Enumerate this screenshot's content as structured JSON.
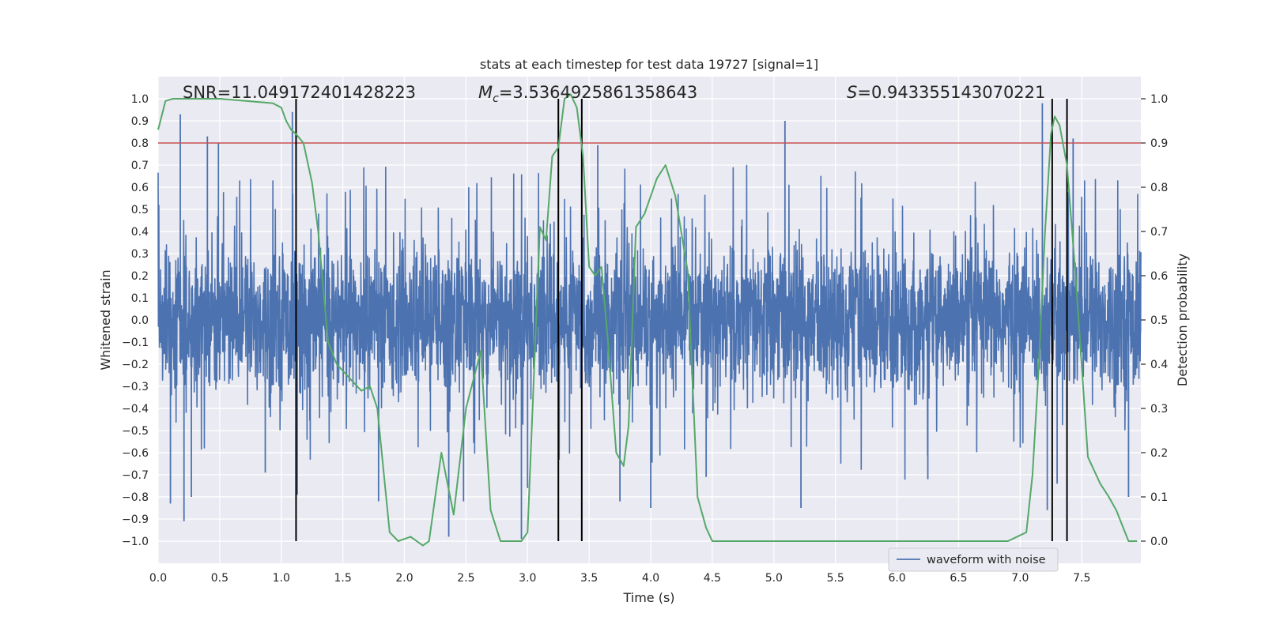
{
  "chart_data": {
    "type": "line",
    "title": "stats at each timestep for test data 19727 [signal=1]",
    "xlabel": "Time (s)",
    "ylabel": "Whitened strain",
    "y2label": "Detection probability",
    "xlim": [
      0.0,
      7.98
    ],
    "ylim": [
      -1.1,
      1.1
    ],
    "y2lim": [
      -0.05,
      1.05
    ],
    "grid": true,
    "x_ticks": [
      0.0,
      0.5,
      1.0,
      1.5,
      2.0,
      2.5,
      3.0,
      3.5,
      4.0,
      4.5,
      5.0,
      5.5,
      6.0,
      6.5,
      7.0,
      7.5
    ],
    "x_tick_labels": [
      "0.0",
      "0.5",
      "1.0",
      "1.5",
      "2.0",
      "2.5",
      "3.0",
      "3.5",
      "4.0",
      "4.5",
      "5.0",
      "5.5",
      "6.0",
      "6.5",
      "7.0",
      "7.5"
    ],
    "y_ticks": [
      1.0,
      0.9,
      0.8,
      0.7,
      0.6,
      0.5,
      0.4,
      0.3,
      0.2,
      0.1,
      0.0,
      -0.1,
      -0.2,
      -0.3,
      -0.4,
      -0.5,
      -0.6,
      -0.7,
      -0.8,
      -0.9,
      -1.0
    ],
    "y_tick_labels": [
      "1.0",
      "0.9",
      "0.8",
      "0.7",
      "0.6",
      "0.5",
      "0.4",
      "0.3",
      "0.2",
      "0.1",
      "0.0",
      "−0.1",
      "−0.2",
      "−0.3",
      "−0.4",
      "−0.5",
      "−0.6",
      "−0.7",
      "−0.8",
      "−0.9",
      "−1.0"
    ],
    "y2_ticks": [
      1.0,
      0.9,
      0.8,
      0.7,
      0.6,
      0.5,
      0.4,
      0.3,
      0.2,
      0.1,
      0.0
    ],
    "y2_tick_labels": [
      "1.0",
      "0.9",
      "0.8",
      "0.7",
      "0.6",
      "0.5",
      "0.4",
      "0.3",
      "0.2",
      "0.1",
      "0.0"
    ],
    "annotations": {
      "snr": "SNR=11.049172401428223",
      "mc_symbol": "M",
      "mc_sub": "c",
      "mc_value": "=3.5364925861358643",
      "s_symbol": "S",
      "s_value": "=0.943355143070221"
    },
    "legend": {
      "label": "waveform with noise",
      "position": "lower-right"
    },
    "threshold_y2": 0.9,
    "event_markers_x": [
      1.12,
      3.25,
      3.44,
      7.26,
      7.38
    ],
    "series": [
      {
        "name": "waveform with noise",
        "color": "#4c72b0",
        "axis": "left",
        "kind": "noise",
        "num_samples": 4000,
        "typical_amplitude": 0.3,
        "spikes": [
          {
            "x": 0.1,
            "y": -0.83
          },
          {
            "x": 0.18,
            "y": 0.93
          },
          {
            "x": 0.21,
            "y": -0.91
          },
          {
            "x": 0.27,
            "y": -0.8
          },
          {
            "x": 0.4,
            "y": 0.83
          },
          {
            "x": 0.49,
            "y": 0.8
          },
          {
            "x": 0.87,
            "y": -0.69
          },
          {
            "x": 1.09,
            "y": 0.94
          },
          {
            "x": 1.13,
            "y": -0.79
          },
          {
            "x": 1.79,
            "y": -0.82
          },
          {
            "x": 2.36,
            "y": -0.98
          },
          {
            "x": 2.48,
            "y": -0.82
          },
          {
            "x": 2.95,
            "y": -0.99
          },
          {
            "x": 3.0,
            "y": -0.76
          },
          {
            "x": 3.57,
            "y": 0.79
          },
          {
            "x": 3.75,
            "y": -0.82
          },
          {
            "x": 4.0,
            "y": -0.85
          },
          {
            "x": 4.45,
            "y": -0.71
          },
          {
            "x": 5.09,
            "y": 0.9
          },
          {
            "x": 5.22,
            "y": -0.85
          },
          {
            "x": 6.25,
            "y": -0.72
          },
          {
            "x": 7.18,
            "y": 0.98
          },
          {
            "x": 7.22,
            "y": -0.86
          },
          {
            "x": 7.3,
            "y": -0.74
          },
          {
            "x": 7.43,
            "y": 0.82
          },
          {
            "x": 7.88,
            "y": -0.8
          }
        ]
      },
      {
        "name": "detection probability",
        "color": "#55a868",
        "axis": "right",
        "x": [
          0.0,
          0.06,
          0.12,
          0.5,
          0.93,
          1.0,
          1.04,
          1.08,
          1.12,
          1.18,
          1.25,
          1.3,
          1.38,
          1.45,
          1.55,
          1.65,
          1.72,
          1.78,
          1.88,
          1.95,
          2.05,
          2.15,
          2.2,
          2.3,
          2.4,
          2.5,
          2.62,
          2.7,
          2.78,
          2.85,
          2.95,
          3.0,
          3.1,
          3.15,
          3.2,
          3.25,
          3.3,
          3.35,
          3.4,
          3.45,
          3.5,
          3.55,
          3.6,
          3.65,
          3.72,
          3.78,
          3.82,
          3.88,
          3.95,
          4.05,
          4.12,
          4.2,
          4.3,
          4.38,
          4.45,
          4.5,
          4.7,
          5.0,
          5.2,
          5.5,
          6.0,
          6.5,
          6.9,
          7.05,
          7.1,
          7.15,
          7.2,
          7.25,
          7.28,
          7.32,
          7.38,
          7.45,
          7.55,
          7.65,
          7.72,
          7.78,
          7.88,
          7.95
        ],
        "y": [
          0.93,
          0.995,
          1.0,
          1.0,
          0.99,
          0.98,
          0.95,
          0.93,
          0.92,
          0.9,
          0.81,
          0.7,
          0.45,
          0.4,
          0.37,
          0.34,
          0.35,
          0.3,
          0.02,
          0.0,
          0.01,
          -0.01,
          0.0,
          0.2,
          0.06,
          0.3,
          0.43,
          0.07,
          0.0,
          0.0,
          0.0,
          0.02,
          0.71,
          0.68,
          0.87,
          0.89,
          1.0,
          1.01,
          0.98,
          0.87,
          0.62,
          0.6,
          0.62,
          0.46,
          0.2,
          0.17,
          0.26,
          0.71,
          0.74,
          0.82,
          0.85,
          0.78,
          0.61,
          0.1,
          0.03,
          0.0,
          0.0,
          0.0,
          0.0,
          0.0,
          0.0,
          0.0,
          0.0,
          0.02,
          0.15,
          0.39,
          0.69,
          0.92,
          0.96,
          0.94,
          0.85,
          0.6,
          0.19,
          0.13,
          0.1,
          0.07,
          0.0,
          0.0
        ]
      }
    ]
  },
  "colors": {
    "plot_bg": "#eaeaf2",
    "grid": "#ffffff",
    "threshold": "#c44e52",
    "markers": "#000000"
  }
}
